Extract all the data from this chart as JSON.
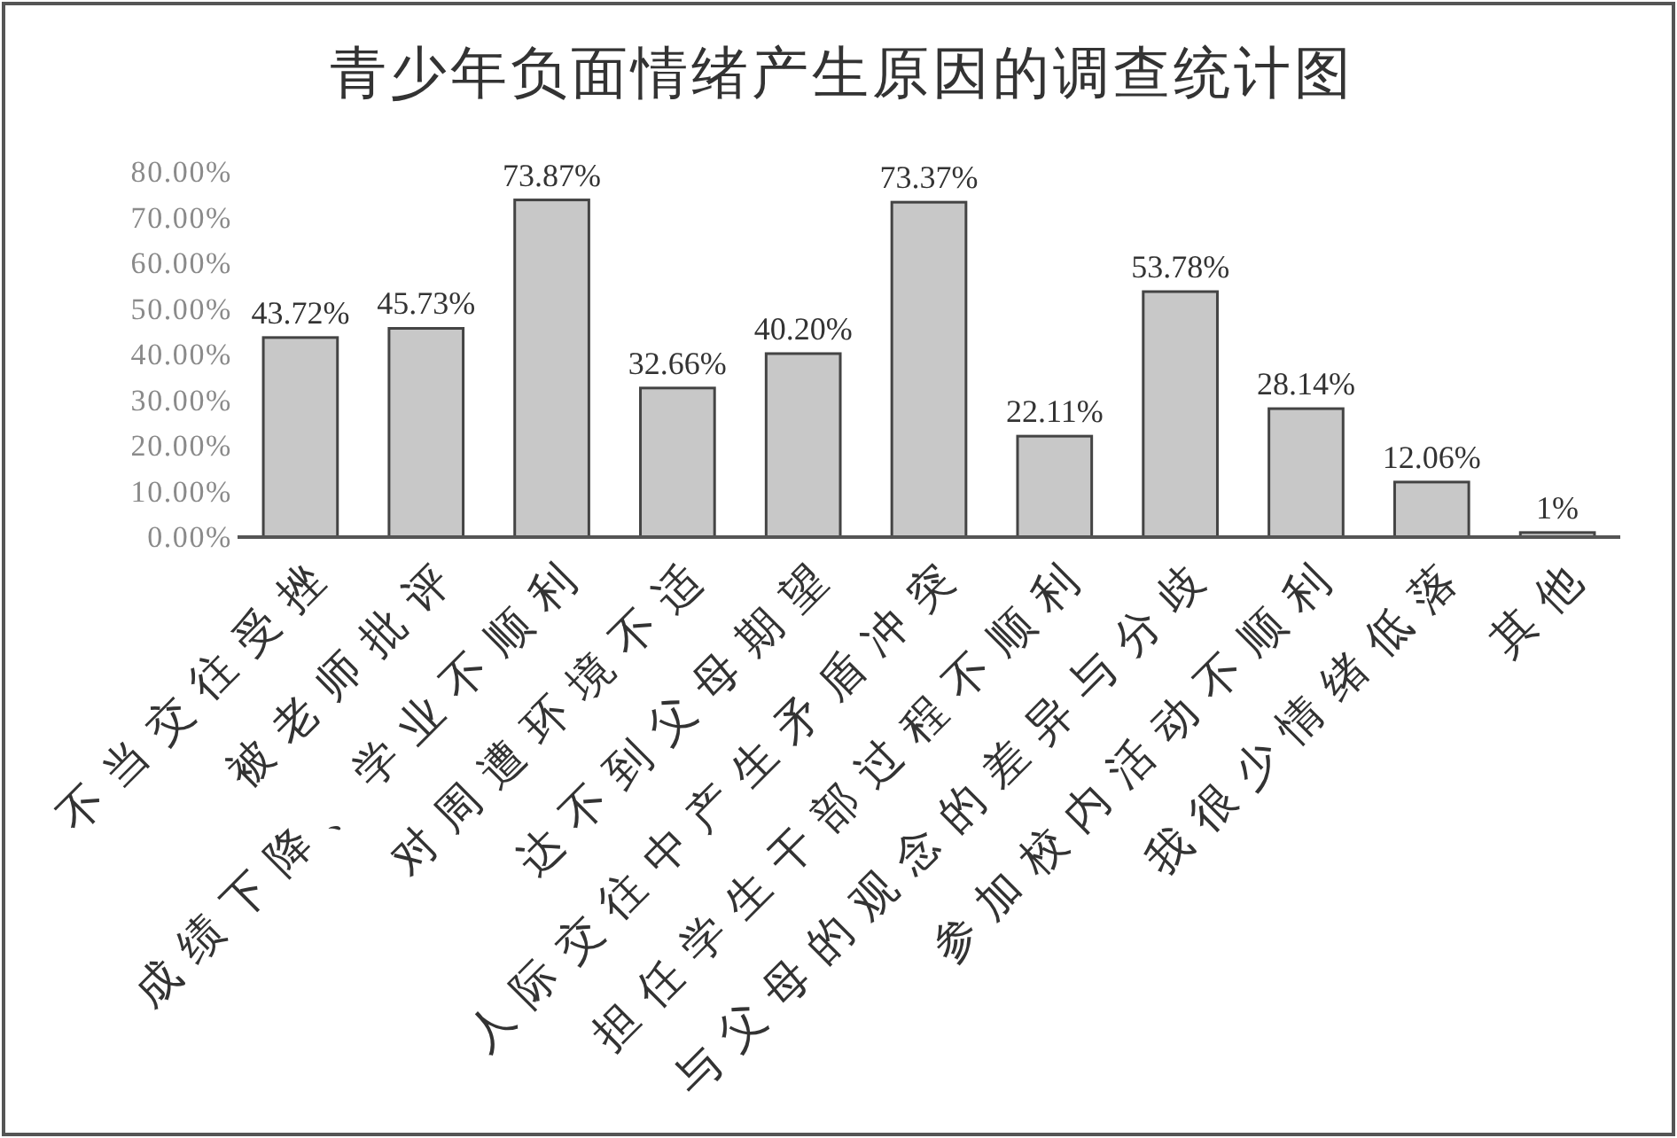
{
  "chart_data": {
    "type": "bar",
    "title": "青少年负面情绪产生原因的调查统计图",
    "categories": [
      "不当交往受挫",
      "被老师批评",
      "成绩下降、学业不顺利",
      "对周遭环境不适",
      "达不到父母期望",
      "人际交往中产生矛盾冲突",
      "担任学生干部过程不顺利",
      "与父母的观念的差异与分歧",
      "参加校内活动不顺利",
      "我很少情绪低落",
      "其他"
    ],
    "values": [
      43.72,
      45.73,
      73.87,
      32.66,
      40.2,
      73.37,
      22.11,
      53.78,
      28.14,
      12.06,
      1
    ],
    "value_labels": [
      "43.72%",
      "45.73%",
      "73.87%",
      "32.66%",
      "40.20%",
      "73.37%",
      "22.11%",
      "53.78%",
      "28.14%",
      "12.06%",
      "1%"
    ],
    "color": "#c8c8c8",
    "ylim": [
      0,
      80
    ],
    "yticks": [
      {
        "value": 0,
        "label": "0.00%"
      },
      {
        "value": 10,
        "label": "10.00%"
      },
      {
        "value": 20,
        "label": "20.00%"
      },
      {
        "value": 30,
        "label": "30.00%"
      },
      {
        "value": 40,
        "label": "40.00%"
      },
      {
        "value": 50,
        "label": "50.00%"
      },
      {
        "value": 60,
        "label": "60.00%"
      },
      {
        "value": 70,
        "label": "70.00%"
      },
      {
        "value": 80,
        "label": "80.00%"
      }
    ]
  }
}
